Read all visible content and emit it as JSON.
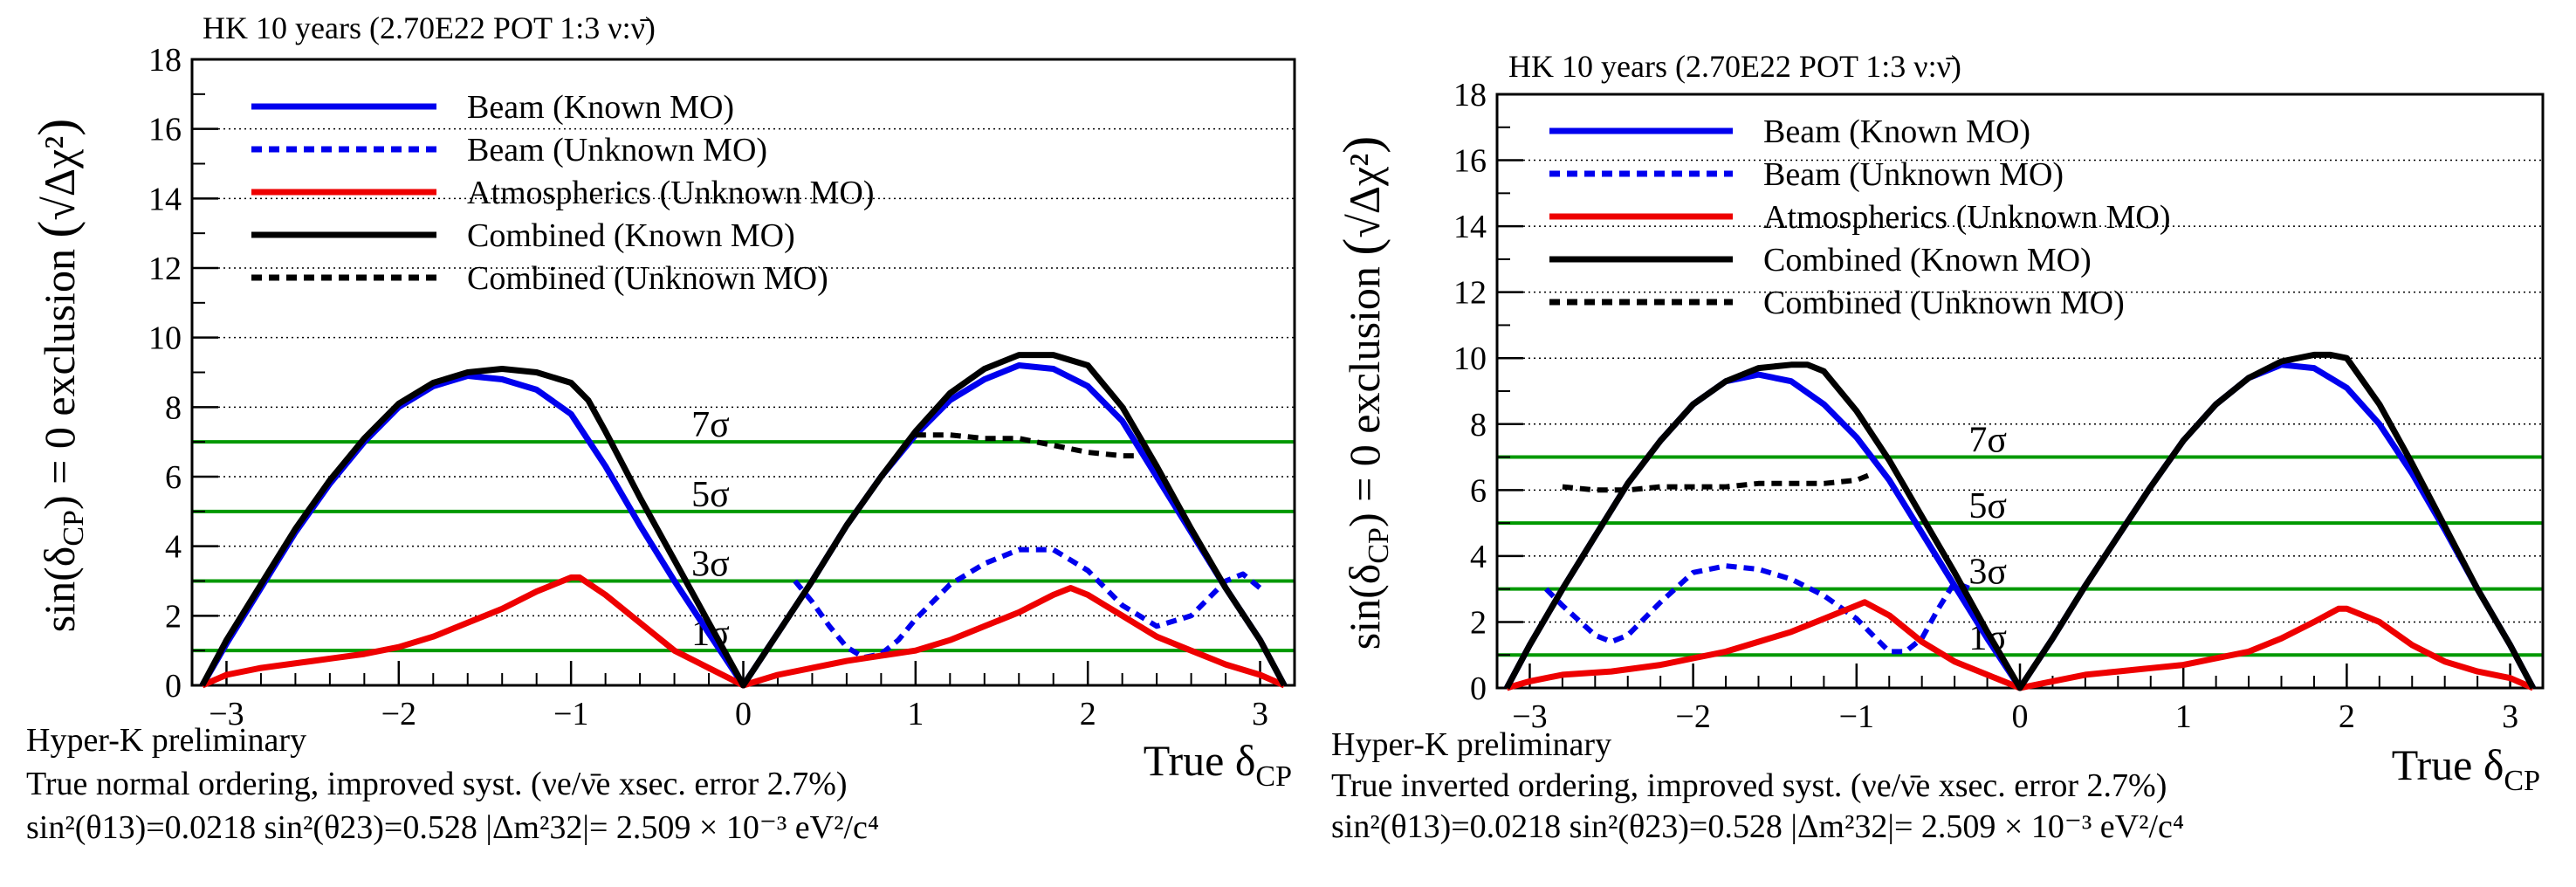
{
  "chart_data": [
    {
      "type": "line",
      "header": "HK 10 years (2.70E22 POT 1:3 ν:ν̄)",
      "ylabel_main": "sin(δ",
      "ylabel_sub": "CP",
      "ylabel_end": ") = 0 exclusion",
      "xlabel_main": "True δ",
      "xlabel_sub": "CP",
      "xlim": [
        -3.2,
        3.2
      ],
      "ylim": [
        0,
        18
      ],
      "x_ticks": [
        "−3",
        "−2",
        "−1",
        "0",
        "1",
        "2",
        "3"
      ],
      "y_ticks": [
        "0",
        "2",
        "4",
        "6",
        "8",
        "10",
        "12",
        "14",
        "16",
        "18"
      ],
      "sigma_levels": [
        {
          "label": "1σ",
          "value": 1
        },
        {
          "label": "3σ",
          "value": 3
        },
        {
          "label": "5σ",
          "value": 5
        },
        {
          "label": "7σ",
          "value": 7
        }
      ],
      "sigma_label_x": -0.08,
      "legend": [
        {
          "label": "Beam (Known MO)",
          "color": "#0000ee",
          "dash": "solid"
        },
        {
          "label": "Beam (Unknown MO)",
          "color": "#0000ee",
          "dash": "dotted"
        },
        {
          "label": "Atmospherics (Unknown MO)",
          "color": "#ee0000",
          "dash": "solid"
        },
        {
          "label": "Combined (Known MO)",
          "color": "#000000",
          "dash": "solid"
        },
        {
          "label": "Combined (Unknown MO)",
          "color": "#000000",
          "dash": "dotted"
        }
      ],
      "footer": [
        "Hyper-K preliminary",
        "True normal ordering, improved syst. (νe/ν̄e xsec. error 2.7%)",
        "sin²(θ13)=0.0218 sin²(θ23)=0.528 |Δm²32|= 2.509 × 10⁻³ eV²/c⁴"
      ],
      "series": [
        {
          "name": "Beam (Known MO)",
          "x": [
            -3.14,
            -3.0,
            -2.8,
            -2.6,
            -2.4,
            -2.2,
            -2.0,
            -1.8,
            -1.6,
            -1.4,
            -1.2,
            -1.0,
            -0.8,
            -0.6,
            -0.4,
            -0.2,
            0.0,
            0.2,
            0.4,
            0.6,
            0.8,
            1.0,
            1.2,
            1.4,
            1.6,
            1.8,
            2.0,
            2.2,
            2.4,
            2.6,
            2.8,
            3.0,
            3.14
          ],
          "y": [
            0.0,
            1.2,
            2.8,
            4.4,
            5.8,
            7.0,
            8.0,
            8.6,
            8.9,
            8.8,
            8.5,
            7.8,
            6.3,
            4.6,
            3.0,
            1.5,
            0.0,
            1.5,
            3.0,
            4.6,
            6.0,
            7.2,
            8.2,
            8.8,
            9.2,
            9.1,
            8.6,
            7.6,
            6.0,
            4.4,
            2.8,
            1.3,
            0.0
          ]
        },
        {
          "name": "Beam (Unknown MO)",
          "x": [
            0.3,
            0.4,
            0.5,
            0.6,
            0.7,
            0.8,
            0.9,
            1.0,
            1.2,
            1.4,
            1.6,
            1.8,
            2.0,
            2.2,
            2.4,
            2.6,
            2.8,
            2.9,
            3.0
          ],
          "y": [
            3.0,
            2.4,
            1.7,
            1.1,
            0.8,
            0.9,
            1.3,
            1.9,
            2.9,
            3.5,
            3.9,
            3.9,
            3.3,
            2.3,
            1.7,
            2.0,
            3.0,
            3.2,
            2.8
          ]
        },
        {
          "name": "Atmospherics (Unknown MO)",
          "x": [
            -3.14,
            -3.0,
            -2.8,
            -2.5,
            -2.2,
            -2.0,
            -1.8,
            -1.6,
            -1.4,
            -1.2,
            -1.0,
            -0.95,
            -0.8,
            -0.6,
            -0.4,
            -0.2,
            0.0,
            0.2,
            0.4,
            0.6,
            0.8,
            1.0,
            1.2,
            1.4,
            1.6,
            1.8,
            1.9,
            2.0,
            2.2,
            2.4,
            2.6,
            2.8,
            3.0,
            3.14
          ],
          "y": [
            0.0,
            0.3,
            0.5,
            0.7,
            0.9,
            1.1,
            1.4,
            1.8,
            2.2,
            2.7,
            3.1,
            3.1,
            2.6,
            1.8,
            1.0,
            0.5,
            0.0,
            0.3,
            0.5,
            0.7,
            0.85,
            1.0,
            1.3,
            1.7,
            2.1,
            2.6,
            2.8,
            2.6,
            2.0,
            1.4,
            1.0,
            0.6,
            0.3,
            0.0
          ]
        },
        {
          "name": "Combined (Known MO)",
          "x": [
            -3.14,
            -3.0,
            -2.8,
            -2.6,
            -2.4,
            -2.2,
            -2.0,
            -1.8,
            -1.6,
            -1.4,
            -1.2,
            -1.0,
            -0.9,
            -0.8,
            -0.6,
            -0.4,
            -0.2,
            0.0,
            0.2,
            0.4,
            0.6,
            0.8,
            1.0,
            1.2,
            1.4,
            1.6,
            1.8,
            2.0,
            2.2,
            2.4,
            2.6,
            2.8,
            3.0,
            3.14
          ],
          "y": [
            0.0,
            1.3,
            2.9,
            4.5,
            5.9,
            7.1,
            8.1,
            8.7,
            9.0,
            9.1,
            9.0,
            8.7,
            8.2,
            7.3,
            5.4,
            3.6,
            1.8,
            0.0,
            1.5,
            3.0,
            4.6,
            6.0,
            7.3,
            8.4,
            9.1,
            9.5,
            9.5,
            9.2,
            8.0,
            6.3,
            4.5,
            2.8,
            1.3,
            0.0
          ]
        },
        {
          "name": "Combined (Unknown MO)",
          "x": [
            1.0,
            1.2,
            1.4,
            1.6,
            1.8,
            2.0,
            2.2,
            2.3
          ],
          "y": [
            7.2,
            7.2,
            7.1,
            7.1,
            6.9,
            6.7,
            6.6,
            6.6
          ]
        }
      ]
    },
    {
      "type": "line",
      "header": "HK 10 years (2.70E22 POT 1:3 ν:ν̄)",
      "ylabel_main": "sin(δ",
      "ylabel_sub": "CP",
      "ylabel_end": ") = 0 exclusion",
      "xlabel_main": "True δ",
      "xlabel_sub": "CP",
      "xlim": [
        -3.2,
        3.2
      ],
      "ylim": [
        0,
        18
      ],
      "x_ticks": [
        "−3",
        "−2",
        "−1",
        "0",
        "1",
        "2",
        "3"
      ],
      "y_ticks": [
        "0",
        "2",
        "4",
        "6",
        "8",
        "10",
        "12",
        "14",
        "16",
        "18"
      ],
      "sigma_levels": [
        {
          "label": "1σ",
          "value": 1
        },
        {
          "label": "3σ",
          "value": 3
        },
        {
          "label": "5σ",
          "value": 5
        },
        {
          "label": "7σ",
          "value": 7
        }
      ],
      "sigma_label_x": -0.08,
      "legend": [
        {
          "label": "Beam (Known MO)",
          "color": "#0000ee",
          "dash": "solid"
        },
        {
          "label": "Beam (Unknown MO)",
          "color": "#0000ee",
          "dash": "dotted"
        },
        {
          "label": "Atmospherics (Unknown MO)",
          "color": "#ee0000",
          "dash": "solid"
        },
        {
          "label": "Combined (Known MO)",
          "color": "#000000",
          "dash": "solid"
        },
        {
          "label": "Combined (Unknown MO)",
          "color": "#000000",
          "dash": "dotted"
        }
      ],
      "footer": [
        "Hyper-K preliminary",
        "True inverted ordering, improved syst. (νe/ν̄e xsec. error 2.7%)",
        "sin²(θ13)=0.0218 sin²(θ23)=0.528 |Δm²32|= 2.509 × 10⁻³ eV²/c⁴"
      ],
      "series": [
        {
          "name": "Beam (Known MO)",
          "x": [
            -3.14,
            -3.0,
            -2.8,
            -2.6,
            -2.4,
            -2.2,
            -2.0,
            -1.8,
            -1.6,
            -1.4,
            -1.2,
            -1.0,
            -0.8,
            -0.6,
            -0.4,
            -0.2,
            0.0,
            0.2,
            0.4,
            0.6,
            0.8,
            1.0,
            1.2,
            1.4,
            1.6,
            1.8,
            2.0,
            2.2,
            2.4,
            2.6,
            2.8,
            3.0,
            3.14
          ],
          "y": [
            0.0,
            1.3,
            3.0,
            4.6,
            6.2,
            7.5,
            8.6,
            9.3,
            9.5,
            9.3,
            8.6,
            7.6,
            6.3,
            4.7,
            3.1,
            1.5,
            0.0,
            1.5,
            3.1,
            4.6,
            6.1,
            7.5,
            8.6,
            9.4,
            9.8,
            9.7,
            9.1,
            8.0,
            6.5,
            4.8,
            3.0,
            1.3,
            0.0
          ]
        },
        {
          "name": "Beam (Unknown MO)",
          "x": [
            -2.9,
            -2.8,
            -2.6,
            -2.5,
            -2.4,
            -2.2,
            -2.0,
            -1.8,
            -1.6,
            -1.4,
            -1.2,
            -1.0,
            -0.9,
            -0.8,
            -0.7,
            -0.6,
            -0.5,
            -0.4,
            -0.3
          ],
          "y": [
            3.0,
            2.5,
            1.6,
            1.4,
            1.6,
            2.6,
            3.5,
            3.7,
            3.6,
            3.3,
            2.8,
            2.1,
            1.6,
            1.1,
            1.1,
            1.5,
            2.4,
            3.2,
            3.0
          ]
        },
        {
          "name": "Atmospherics (Unknown MO)",
          "x": [
            -3.14,
            -3.0,
            -2.8,
            -2.5,
            -2.2,
            -2.0,
            -1.8,
            -1.6,
            -1.4,
            -1.2,
            -1.0,
            -0.95,
            -0.8,
            -0.6,
            -0.4,
            -0.2,
            0.0,
            0.2,
            0.4,
            0.6,
            0.8,
            1.0,
            1.2,
            1.4,
            1.6,
            1.8,
            1.95,
            2.0,
            2.2,
            2.4,
            2.6,
            2.8,
            3.0,
            3.14
          ],
          "y": [
            0.0,
            0.2,
            0.4,
            0.5,
            0.7,
            0.9,
            1.1,
            1.4,
            1.7,
            2.1,
            2.5,
            2.6,
            2.2,
            1.4,
            0.8,
            0.4,
            0.0,
            0.2,
            0.4,
            0.5,
            0.6,
            0.7,
            0.9,
            1.1,
            1.5,
            2.0,
            2.4,
            2.4,
            2.0,
            1.3,
            0.8,
            0.5,
            0.3,
            0.0
          ]
        },
        {
          "name": "Combined (Known MO)",
          "x": [
            -3.14,
            -3.0,
            -2.8,
            -2.6,
            -2.4,
            -2.2,
            -2.0,
            -1.8,
            -1.6,
            -1.4,
            -1.3,
            -1.2,
            -1.0,
            -0.8,
            -0.6,
            -0.4,
            -0.2,
            0.0,
            0.2,
            0.4,
            0.6,
            0.8,
            1.0,
            1.2,
            1.4,
            1.6,
            1.8,
            1.9,
            2.0,
            2.2,
            2.4,
            2.6,
            2.8,
            3.0,
            3.14
          ],
          "y": [
            0.0,
            1.3,
            3.0,
            4.6,
            6.2,
            7.5,
            8.6,
            9.3,
            9.7,
            9.8,
            9.8,
            9.6,
            8.4,
            6.9,
            5.2,
            3.5,
            1.7,
            0.0,
            1.5,
            3.1,
            4.6,
            6.1,
            7.5,
            8.6,
            9.4,
            9.9,
            10.1,
            10.1,
            10.0,
            8.6,
            6.8,
            4.9,
            3.0,
            1.3,
            0.0
          ]
        },
        {
          "name": "Combined (Unknown MO)",
          "x": [
            -2.8,
            -2.6,
            -2.4,
            -2.2,
            -2.0,
            -1.8,
            -1.6,
            -1.4,
            -1.2,
            -1.0,
            -0.9
          ],
          "y": [
            6.1,
            6.0,
            6.0,
            6.1,
            6.1,
            6.1,
            6.2,
            6.2,
            6.2,
            6.3,
            6.5
          ]
        }
      ]
    }
  ]
}
